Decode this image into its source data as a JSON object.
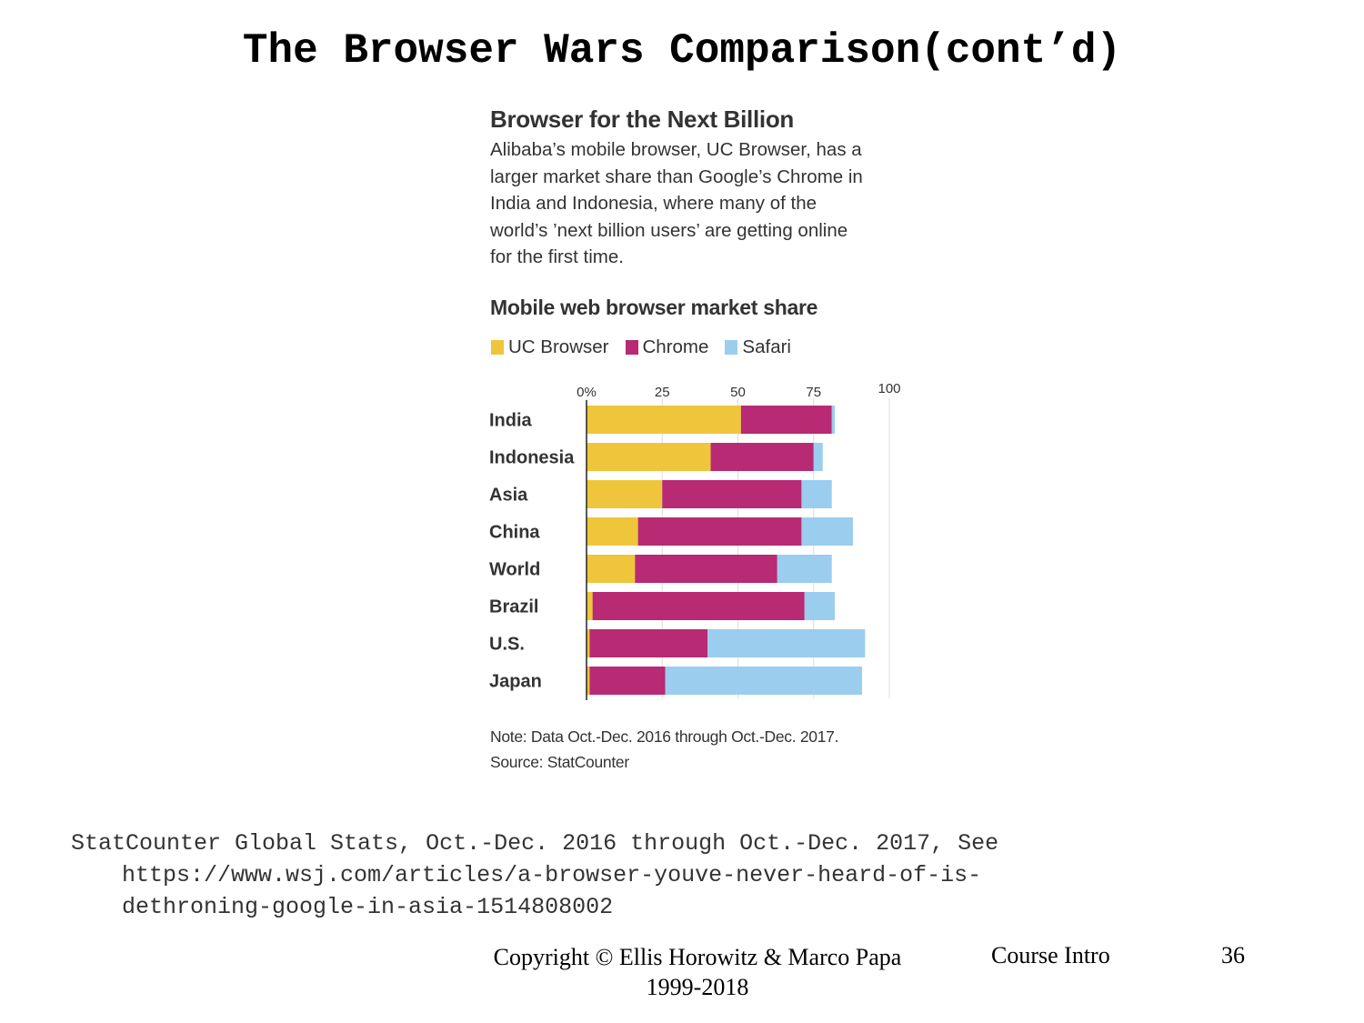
{
  "slide": {
    "title": "The Browser Wars Comparison(cont’d)",
    "source_line1": "StatCounter Global Stats, Oct.-Dec. 2016 through Oct.-Dec. 2017, See",
    "source_line2": "https://www.wsj.com/articles/a-browser-youve-never-heard-of-is-",
    "source_line3": "dethroning-google-in-asia-1514808002",
    "footer_copyright_line1": "Copyright © Ellis Horowitz & Marco Papa",
    "footer_copyright_line2": "1999-2018",
    "footer_course": "Course Intro",
    "footer_page": "36"
  },
  "colors": {
    "uc_browser": "#efc63b",
    "chrome": "#b82a73",
    "safari": "#9bcdef"
  },
  "chart_data": {
    "type": "bar",
    "orientation": "horizontal",
    "stacked": true,
    "title": "Browser for the Next Billion",
    "subtitle_lines": [
      "Alibaba’s mobile browser, UC Browser, has a",
      "larger market share than Google’s Chrome in",
      "India and Indonesia, where many of the",
      "world’s ’next billion users’ are getting online",
      "for the first time."
    ],
    "heading": "Mobile web browser market share",
    "categories": [
      "India",
      "Indonesia",
      "Asia",
      "China",
      "World",
      "Brazil",
      "U.S.",
      "Japan"
    ],
    "series": [
      {
        "name": "UC Browser",
        "values": [
          51,
          41,
          25,
          17,
          16,
          2,
          1,
          1
        ]
      },
      {
        "name": "Chrome",
        "values": [
          30,
          34,
          46,
          54,
          47,
          70,
          39,
          25
        ]
      },
      {
        "name": "Safari",
        "values": [
          1,
          3,
          10,
          17,
          18,
          10,
          52,
          65
        ]
      }
    ],
    "x_ticks": [
      0,
      25,
      50,
      75,
      100
    ],
    "x_tick_labels": [
      "0%",
      "25",
      "50",
      "75",
      "100"
    ],
    "xlim": [
      0,
      100
    ],
    "legend_position": "top-left",
    "note": "Note: Data Oct.-Dec. 2016 through Oct.-Dec. 2017.",
    "source": "Source: StatCounter"
  }
}
